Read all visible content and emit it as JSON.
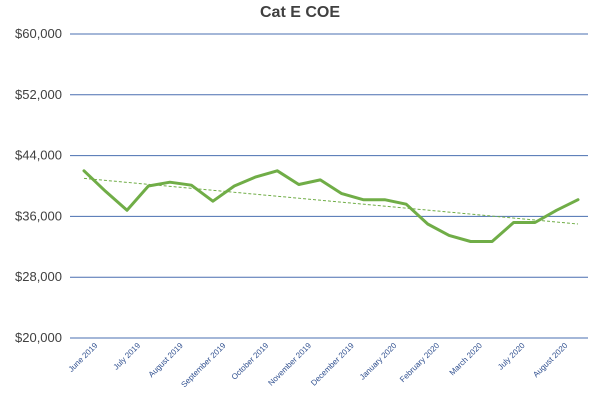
{
  "chart_data": {
    "type": "line",
    "title": "Cat E COE",
    "xlabel": "",
    "ylabel": "",
    "ylim": [
      20000,
      60000
    ],
    "yticks": [
      "$20,000",
      "$28,000",
      "$36,000",
      "$44,000",
      "$52,000",
      "$60,000"
    ],
    "ytick_values": [
      20000,
      28000,
      36000,
      44000,
      52000,
      60000
    ],
    "xtick_labels": [
      "June 2019",
      "July 2019",
      "August 2019",
      "September 2019",
      "October 2019",
      "November 2019",
      "December 2019",
      "January 2020",
      "February 2020",
      "March 2020",
      "July 2020",
      "August 2020"
    ],
    "grid": true,
    "series": [
      {
        "values": [
          42000,
          39300,
          36800,
          40000,
          40500,
          40100,
          38000,
          40000,
          41200,
          42000,
          40200,
          40800,
          39000,
          38200,
          38200,
          37600,
          35000,
          33500,
          32700,
          32700,
          35200,
          35200,
          36800,
          38200
        ],
        "color": "#70ad47"
      }
    ],
    "trendline": {
      "start": 41000,
      "end": 35000,
      "color": "#70ad47",
      "style": "dashed"
    }
  }
}
